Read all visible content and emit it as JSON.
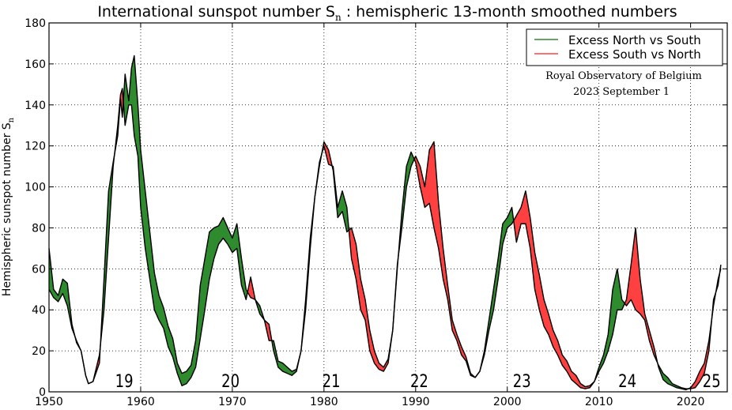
{
  "chart_data": {
    "type": "area",
    "title_main": "International sunspot number S",
    "title_sub": "n",
    "title_rest": " : hemispheric 13-month smoothed numbers",
    "xlabel": "",
    "ylabel_main": "Hemispheric sunspot number S",
    "ylabel_sub": "n",
    "xlim": [
      1950,
      2024
    ],
    "ylim": [
      0,
      180
    ],
    "x_ticks": [
      "1950",
      "1960",
      "1970",
      "1980",
      "1990",
      "2000",
      "2010",
      "2020"
    ],
    "y_ticks": [
      "0",
      "20",
      "40",
      "60",
      "80",
      "100",
      "120",
      "140",
      "160",
      "180"
    ],
    "grid": true,
    "legend_position": "top-right",
    "legend": [
      {
        "label": "Excess North vs South",
        "color": "#2e8b2e"
      },
      {
        "label": "Excess South vs North",
        "color": "#ff4040"
      }
    ],
    "annotation_lines": [
      "Royal Observatory of Belgium",
      "2023 September 1"
    ],
    "cycle_labels": [
      {
        "text": "19",
        "x": 1958.2
      },
      {
        "text": "20",
        "x": 1969.8
      },
      {
        "text": "21",
        "x": 1980.8
      },
      {
        "text": "22",
        "x": 1990.4
      },
      {
        "text": "23",
        "x": 2001.6
      },
      {
        "text": "24",
        "x": 2013.1
      },
      {
        "text": "25",
        "x": 2022.3
      }
    ],
    "colors": {
      "north_excess": "#2e8b2e",
      "south_excess": "#ff4040",
      "line": "#000000"
    },
    "series": [
      {
        "name": "North",
        "points": [
          [
            1950.0,
            70
          ],
          [
            1950.5,
            50
          ],
          [
            1951.0,
            47
          ],
          [
            1951.5,
            55
          ],
          [
            1952.0,
            53
          ],
          [
            1952.5,
            33
          ],
          [
            1953.0,
            24
          ],
          [
            1953.5,
            20
          ],
          [
            1954.0,
            8
          ],
          [
            1954.3,
            4
          ],
          [
            1954.8,
            5
          ],
          [
            1955.5,
            14
          ],
          [
            1956.0,
            55
          ],
          [
            1956.5,
            98
          ],
          [
            1957.0,
            112
          ],
          [
            1957.5,
            125
          ],
          [
            1957.8,
            143
          ],
          [
            1958.0,
            134
          ],
          [
            1958.3,
            155
          ],
          [
            1958.7,
            142
          ],
          [
            1959.0,
            158
          ],
          [
            1959.3,
            164
          ],
          [
            1959.7,
            140
          ],
          [
            1960.0,
            118
          ],
          [
            1960.5,
            98
          ],
          [
            1961.0,
            78
          ],
          [
            1961.5,
            58
          ],
          [
            1962.0,
            47
          ],
          [
            1962.5,
            41
          ],
          [
            1963.0,
            32
          ],
          [
            1963.5,
            26
          ],
          [
            1964.0,
            14
          ],
          [
            1964.5,
            9
          ],
          [
            1965.0,
            10
          ],
          [
            1965.5,
            13
          ],
          [
            1966.0,
            25
          ],
          [
            1966.5,
            52
          ],
          [
            1967.0,
            65
          ],
          [
            1967.5,
            78
          ],
          [
            1968.0,
            80
          ],
          [
            1968.5,
            81
          ],
          [
            1969.0,
            85
          ],
          [
            1969.5,
            80
          ],
          [
            1970.0,
            75
          ],
          [
            1970.5,
            82
          ],
          [
            1971.0,
            65
          ],
          [
            1971.5,
            50
          ],
          [
            1972.0,
            46
          ],
          [
            1972.5,
            45
          ],
          [
            1973.0,
            42
          ],
          [
            1973.5,
            35
          ],
          [
            1974.0,
            25
          ],
          [
            1974.5,
            25
          ],
          [
            1975.0,
            15
          ],
          [
            1975.5,
            14
          ],
          [
            1976.0,
            12
          ],
          [
            1976.5,
            10
          ],
          [
            1977.0,
            11
          ],
          [
            1977.5,
            20
          ],
          [
            1978.0,
            45
          ],
          [
            1978.5,
            75
          ],
          [
            1979.0,
            95
          ],
          [
            1979.5,
            112
          ],
          [
            1980.0,
            120
          ],
          [
            1980.5,
            111
          ],
          [
            1981.0,
            110
          ],
          [
            1981.5,
            90
          ],
          [
            1982.0,
            98
          ],
          [
            1982.5,
            90
          ],
          [
            1983.0,
            65
          ],
          [
            1983.5,
            55
          ],
          [
            1984.0,
            40
          ],
          [
            1984.5,
            35
          ],
          [
            1985.0,
            20
          ],
          [
            1985.5,
            14
          ],
          [
            1986.0,
            11
          ],
          [
            1986.5,
            10
          ],
          [
            1987.0,
            14
          ],
          [
            1987.5,
            30
          ],
          [
            1988.0,
            60
          ],
          [
            1988.5,
            88
          ],
          [
            1989.0,
            110
          ],
          [
            1989.5,
            117
          ],
          [
            1990.0,
            112
          ],
          [
            1990.5,
            100
          ],
          [
            1991.0,
            90
          ],
          [
            1991.5,
            92
          ],
          [
            1992.0,
            80
          ],
          [
            1992.5,
            70
          ],
          [
            1993.0,
            55
          ],
          [
            1993.5,
            45
          ],
          [
            1994.0,
            30
          ],
          [
            1994.5,
            25
          ],
          [
            1995.0,
            18
          ],
          [
            1995.5,
            15
          ],
          [
            1996.0,
            8
          ],
          [
            1996.5,
            7
          ],
          [
            1997.0,
            10
          ],
          [
            1997.5,
            20
          ],
          [
            1998.0,
            35
          ],
          [
            1998.5,
            50
          ],
          [
            1999.0,
            65
          ],
          [
            1999.5,
            82
          ],
          [
            2000.0,
            85
          ],
          [
            2000.5,
            90
          ],
          [
            2001.0,
            73
          ],
          [
            2001.5,
            82
          ],
          [
            2002.0,
            82
          ],
          [
            2002.5,
            70
          ],
          [
            2003.0,
            50
          ],
          [
            2003.5,
            40
          ],
          [
            2004.0,
            32
          ],
          [
            2004.5,
            28
          ],
          [
            2005.0,
            22
          ],
          [
            2005.5,
            18
          ],
          [
            2006.0,
            13
          ],
          [
            2006.5,
            10
          ],
          [
            2007.0,
            6
          ],
          [
            2007.5,
            4
          ],
          [
            2008.0,
            2
          ],
          [
            2008.5,
            1.5
          ],
          [
            2009.0,
            2
          ],
          [
            2009.5,
            5
          ],
          [
            2010.0,
            12
          ],
          [
            2010.5,
            18
          ],
          [
            2011.0,
            28
          ],
          [
            2011.5,
            50
          ],
          [
            2012.0,
            60
          ],
          [
            2012.5,
            45
          ],
          [
            2013.0,
            42
          ],
          [
            2013.5,
            45
          ],
          [
            2014.0,
            40
          ],
          [
            2014.5,
            38
          ],
          [
            2015.0,
            35
          ],
          [
            2015.5,
            25
          ],
          [
            2016.0,
            18
          ],
          [
            2016.5,
            13
          ],
          [
            2017.0,
            9
          ],
          [
            2017.5,
            7
          ],
          [
            2018.0,
            4
          ],
          [
            2018.5,
            3
          ],
          [
            2019.0,
            2
          ],
          [
            2019.5,
            1.5
          ],
          [
            2020.0,
            1.5
          ],
          [
            2020.5,
            2
          ],
          [
            2021.0,
            5
          ],
          [
            2021.5,
            9
          ],
          [
            2022.0,
            20
          ],
          [
            2022.5,
            45
          ],
          [
            2023.0,
            52
          ],
          [
            2023.3,
            62
          ]
        ]
      },
      {
        "name": "South",
        "points": [
          [
            1950.0,
            50
          ],
          [
            1950.5,
            46
          ],
          [
            1951.0,
            44
          ],
          [
            1951.5,
            48
          ],
          [
            1952.0,
            42
          ],
          [
            1952.5,
            31
          ],
          [
            1953.0,
            25
          ],
          [
            1953.5,
            20
          ],
          [
            1954.0,
            8
          ],
          [
            1954.3,
            4
          ],
          [
            1954.8,
            5
          ],
          [
            1955.5,
            18
          ],
          [
            1956.0,
            40
          ],
          [
            1956.5,
            75
          ],
          [
            1957.0,
            110
          ],
          [
            1957.5,
            130
          ],
          [
            1957.8,
            145
          ],
          [
            1958.0,
            148
          ],
          [
            1958.3,
            130
          ],
          [
            1958.7,
            140
          ],
          [
            1959.0,
            140
          ],
          [
            1959.3,
            125
          ],
          [
            1959.7,
            115
          ],
          [
            1960.0,
            90
          ],
          [
            1960.5,
            70
          ],
          [
            1961.0,
            55
          ],
          [
            1961.5,
            40
          ],
          [
            1962.0,
            35
          ],
          [
            1962.5,
            31
          ],
          [
            1963.0,
            22
          ],
          [
            1963.5,
            17
          ],
          [
            1964.0,
            9
          ],
          [
            1964.5,
            3
          ],
          [
            1965.0,
            4
          ],
          [
            1965.5,
            7
          ],
          [
            1966.0,
            12
          ],
          [
            1966.5,
            26
          ],
          [
            1967.0,
            40
          ],
          [
            1967.5,
            55
          ],
          [
            1968.0,
            65
          ],
          [
            1968.5,
            72
          ],
          [
            1969.0,
            75
          ],
          [
            1969.5,
            72
          ],
          [
            1970.0,
            68
          ],
          [
            1970.5,
            70
          ],
          [
            1971.0,
            52
          ],
          [
            1971.5,
            45
          ],
          [
            1972.0,
            56
          ],
          [
            1972.5,
            45
          ],
          [
            1973.0,
            38
          ],
          [
            1973.5,
            35
          ],
          [
            1974.0,
            33
          ],
          [
            1974.5,
            20
          ],
          [
            1975.0,
            12
          ],
          [
            1975.5,
            10
          ],
          [
            1976.0,
            9
          ],
          [
            1976.5,
            8
          ],
          [
            1977.0,
            10
          ],
          [
            1977.5,
            20
          ],
          [
            1978.0,
            40
          ],
          [
            1978.5,
            70
          ],
          [
            1979.0,
            95
          ],
          [
            1979.5,
            110
          ],
          [
            1980.0,
            122
          ],
          [
            1980.5,
            118
          ],
          [
            1981.0,
            108
          ],
          [
            1981.5,
            85
          ],
          [
            1982.0,
            88
          ],
          [
            1982.5,
            78
          ],
          [
            1983.0,
            80
          ],
          [
            1983.5,
            72
          ],
          [
            1984.0,
            55
          ],
          [
            1984.5,
            45
          ],
          [
            1985.0,
            30
          ],
          [
            1985.5,
            20
          ],
          [
            1986.0,
            14
          ],
          [
            1986.5,
            12
          ],
          [
            1987.0,
            16
          ],
          [
            1987.5,
            30
          ],
          [
            1988.0,
            62
          ],
          [
            1988.5,
            80
          ],
          [
            1989.0,
            100
          ],
          [
            1989.5,
            110
          ],
          [
            1990.0,
            115
          ],
          [
            1990.5,
            110
          ],
          [
            1991.0,
            100
          ],
          [
            1991.5,
            118
          ],
          [
            1992.0,
            122
          ],
          [
            1992.5,
            92
          ],
          [
            1993.0,
            70
          ],
          [
            1993.5,
            52
          ],
          [
            1994.0,
            35
          ],
          [
            1994.5,
            28
          ],
          [
            1995.0,
            22
          ],
          [
            1995.5,
            17
          ],
          [
            1996.0,
            9
          ],
          [
            1996.5,
            7
          ],
          [
            1997.0,
            10
          ],
          [
            1997.5,
            18
          ],
          [
            1998.0,
            30
          ],
          [
            1998.5,
            40
          ],
          [
            1999.0,
            55
          ],
          [
            1999.5,
            72
          ],
          [
            2000.0,
            80
          ],
          [
            2000.5,
            82
          ],
          [
            2001.0,
            86
          ],
          [
            2001.5,
            90
          ],
          [
            2002.0,
            98
          ],
          [
            2002.5,
            85
          ],
          [
            2003.0,
            68
          ],
          [
            2003.5,
            57
          ],
          [
            2004.0,
            45
          ],
          [
            2004.5,
            38
          ],
          [
            2005.0,
            30
          ],
          [
            2005.5,
            25
          ],
          [
            2006.0,
            18
          ],
          [
            2006.5,
            15
          ],
          [
            2007.0,
            10
          ],
          [
            2007.5,
            8
          ],
          [
            2008.0,
            4
          ],
          [
            2008.5,
            2.5
          ],
          [
            2009.0,
            3
          ],
          [
            2009.5,
            5
          ],
          [
            2010.0,
            10
          ],
          [
            2010.5,
            14
          ],
          [
            2011.0,
            20
          ],
          [
            2011.5,
            28
          ],
          [
            2012.0,
            40
          ],
          [
            2012.5,
            40
          ],
          [
            2013.0,
            45
          ],
          [
            2013.5,
            62
          ],
          [
            2014.0,
            80
          ],
          [
            2014.5,
            55
          ],
          [
            2015.0,
            38
          ],
          [
            2015.5,
            30
          ],
          [
            2016.0,
            22
          ],
          [
            2016.5,
            12
          ],
          [
            2017.0,
            6
          ],
          [
            2017.5,
            4
          ],
          [
            2018.0,
            3
          ],
          [
            2018.5,
            2
          ],
          [
            2019.0,
            1.5
          ],
          [
            2019.5,
            1
          ],
          [
            2020.0,
            2
          ],
          [
            2020.5,
            5
          ],
          [
            2021.0,
            10
          ],
          [
            2021.5,
            14
          ],
          [
            2022.0,
            25
          ],
          [
            2022.5,
            42
          ],
          [
            2023.0,
            55
          ],
          [
            2023.3,
            60
          ]
        ]
      }
    ]
  }
}
